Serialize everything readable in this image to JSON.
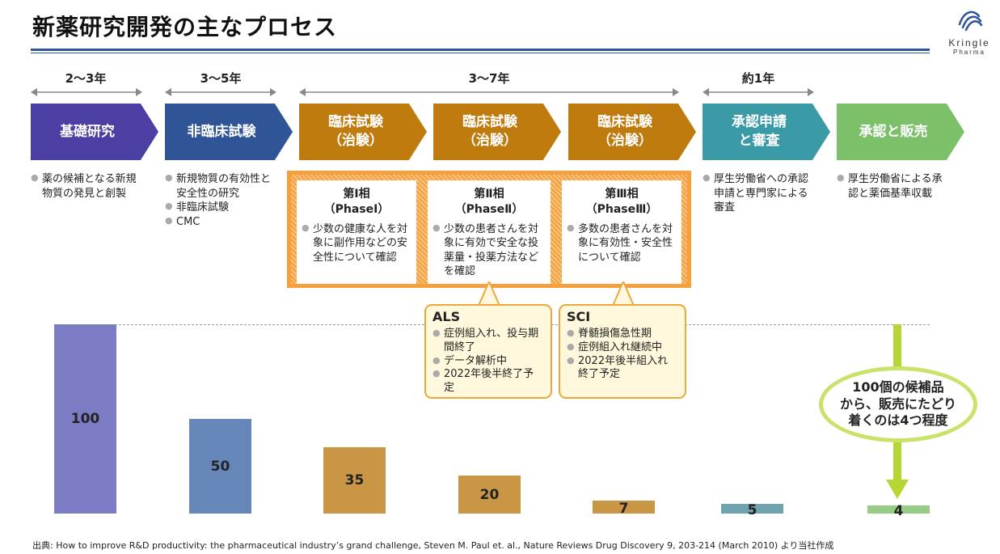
{
  "title": "新薬研究開発の主なプロセス",
  "logo": {
    "brand": "Kringle",
    "sub": "Pharma"
  },
  "durations": [
    "2〜3年",
    "3〜5年",
    "3〜7年",
    "約1年"
  ],
  "stages": [
    {
      "label": "基礎研究",
      "color": "#4b3fa3"
    },
    {
      "label": "非臨床試験",
      "color": "#2f5597"
    },
    {
      "label": "臨床試験\n（治験）",
      "color": "#c07b0e"
    },
    {
      "label": "臨床試験\n（治験）",
      "color": "#c07b0e"
    },
    {
      "label": "臨床試験\n（治験）",
      "color": "#c07b0e"
    },
    {
      "label": "承認申請\nと審査",
      "color": "#3a9aa6"
    },
    {
      "label": "承認と販売",
      "color": "#7cc06a"
    }
  ],
  "descriptions": {
    "basic": [
      "薬の候補となる新規物質の発見と創製"
    ],
    "nonclinical": [
      "新規物質の有効性と安全性の研究",
      "非臨床試験",
      "CMC"
    ],
    "approval_review": [
      "厚生労働省への承認申請と専門家による審査"
    ],
    "approval_sale": [
      "厚生労働省による承認と薬価基準収載"
    ]
  },
  "phases": [
    {
      "title": "第Ⅰ相\n（PhaseⅠ）",
      "text": "少数の健康な人を対象に副作用などの安全性について確認"
    },
    {
      "title": "第Ⅱ相\n（PhaseⅡ）",
      "text": "少数の患者さんを対象に有効で安全な投薬量・投薬方法などを確認"
    },
    {
      "title": "第Ⅲ相\n（PhaseⅢ）",
      "text": "多数の患者さんを対象に有効性・安全性について確認"
    }
  ],
  "callouts": [
    {
      "title": "ALS",
      "items": [
        "症例組入れ、投与期間終了",
        "データ解析中",
        "2022年後半終了予定"
      ]
    },
    {
      "title": "SCI",
      "items": [
        "脊髄損傷急性期",
        "症例組入れ継続中",
        "2022年後半組入れ終了予定"
      ]
    }
  ],
  "chart_data": {
    "type": "bar",
    "categories": [
      "基礎研究",
      "非臨床試験",
      "臨床試験 第Ⅰ相",
      "臨床試験 第Ⅱ相",
      "臨床試験 第Ⅲ相",
      "承認申請と審査",
      "承認と販売"
    ],
    "values": [
      100,
      50,
      35,
      20,
      7,
      5,
      4
    ],
    "labels": [
      "100",
      "50",
      "35",
      "20",
      "7",
      "5",
      "4"
    ],
    "colors": [
      "#7b7cc4",
      "#6787bb",
      "#c89645",
      "#c89645",
      "#c89645",
      "#6fa3ad",
      "#97cc88"
    ]
  },
  "bubble": "100個の候補品\nから、販売にたどり\n着くのは4つ程度",
  "source": "出典:  How to improve R&D productivity: the pharmaceutical industry’s grand challenge, Steven M. Paul et. al., Nature Reviews Drug Discovery 9, 203-214 (March 2010) より当社作成"
}
